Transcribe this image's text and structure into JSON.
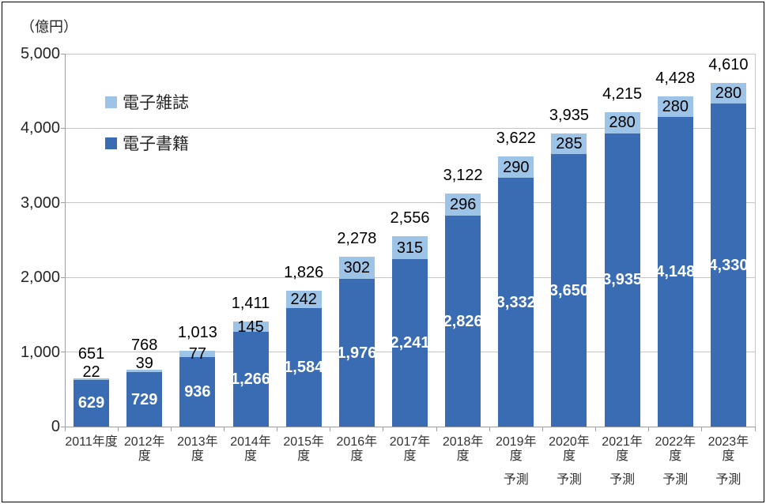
{
  "unit_label": "（億円）",
  "legend": [
    {
      "label": "電子雑誌",
      "color": "#9DC3E6"
    },
    {
      "label": "電子書籍",
      "color": "#3A6CB4"
    }
  ],
  "chart_data": {
    "type": "bar",
    "subtype": "stacked",
    "title": "",
    "ylabel": "（億円）",
    "xlabel": "",
    "grid": true,
    "legend_position": "inside-top-left",
    "ylim": [
      0,
      5000
    ],
    "ytick_step": 1000,
    "yticks": [
      0,
      1000,
      2000,
      3000,
      4000,
      5000
    ],
    "categories": [
      "2011年度",
      "2012年度",
      "2013年度",
      "2014年度",
      "2015年度",
      "2016年度",
      "2017年度",
      "2018年度",
      "2019年度",
      "2020年度",
      "2021年度",
      "2022年度",
      "2023年度"
    ],
    "forecast_note": "予測",
    "forecast_start_index": 8,
    "series": [
      {
        "name": "電子書籍",
        "color": "#3A6CB4",
        "values": [
          629,
          729,
          936,
          1266,
          1584,
          1976,
          2241,
          2826,
          3332,
          3650,
          3935,
          4148,
          4330
        ]
      },
      {
        "name": "電子雑誌",
        "color": "#9DC3E6",
        "values": [
          22,
          39,
          77,
          145,
          242,
          302,
          315,
          296,
          290,
          285,
          280,
          280,
          280
        ]
      }
    ],
    "totals": [
      651,
      768,
      1013,
      1411,
      1826,
      2278,
      2556,
      3122,
      3622,
      3935,
      4215,
      4428,
      4610
    ]
  }
}
